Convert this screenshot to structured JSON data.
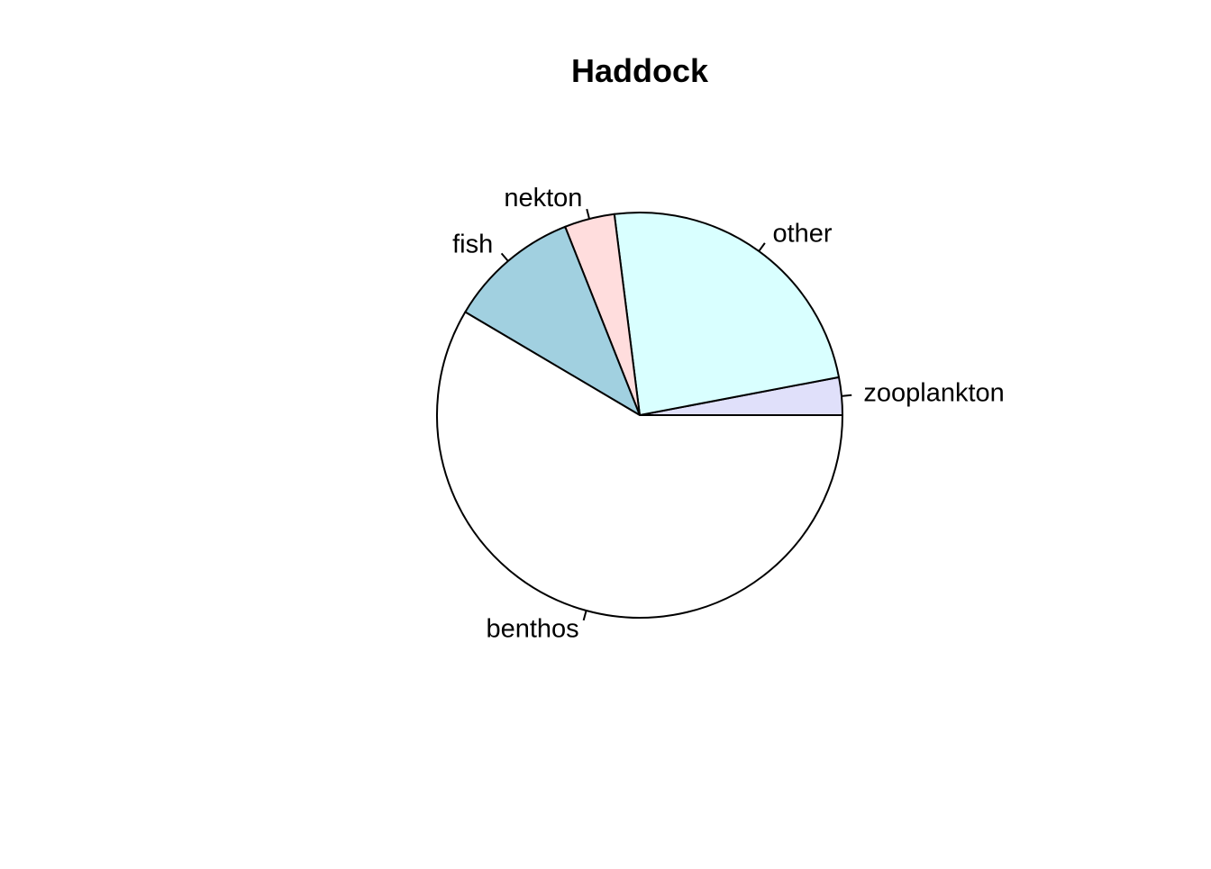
{
  "chart_data": {
    "type": "pie",
    "title": "Haddock",
    "direction": "counter-clockwise",
    "start_angle_deg": 0,
    "slices": [
      {
        "label": "zooplankton",
        "value": 3.0,
        "color": "#E0E0FA"
      },
      {
        "label": "other",
        "value": 24.0,
        "color": "#D9FFFF"
      },
      {
        "label": "nekton",
        "value": 4.0,
        "color": "#FFDDDD"
      },
      {
        "label": "fish",
        "value": 10.5,
        "color": "#A1D0E0"
      },
      {
        "label": "benthos",
        "value": 58.5,
        "color": "#FFFFFF"
      }
    ],
    "colors": {
      "outline": "#000000",
      "background": "#FFFFFF"
    }
  }
}
